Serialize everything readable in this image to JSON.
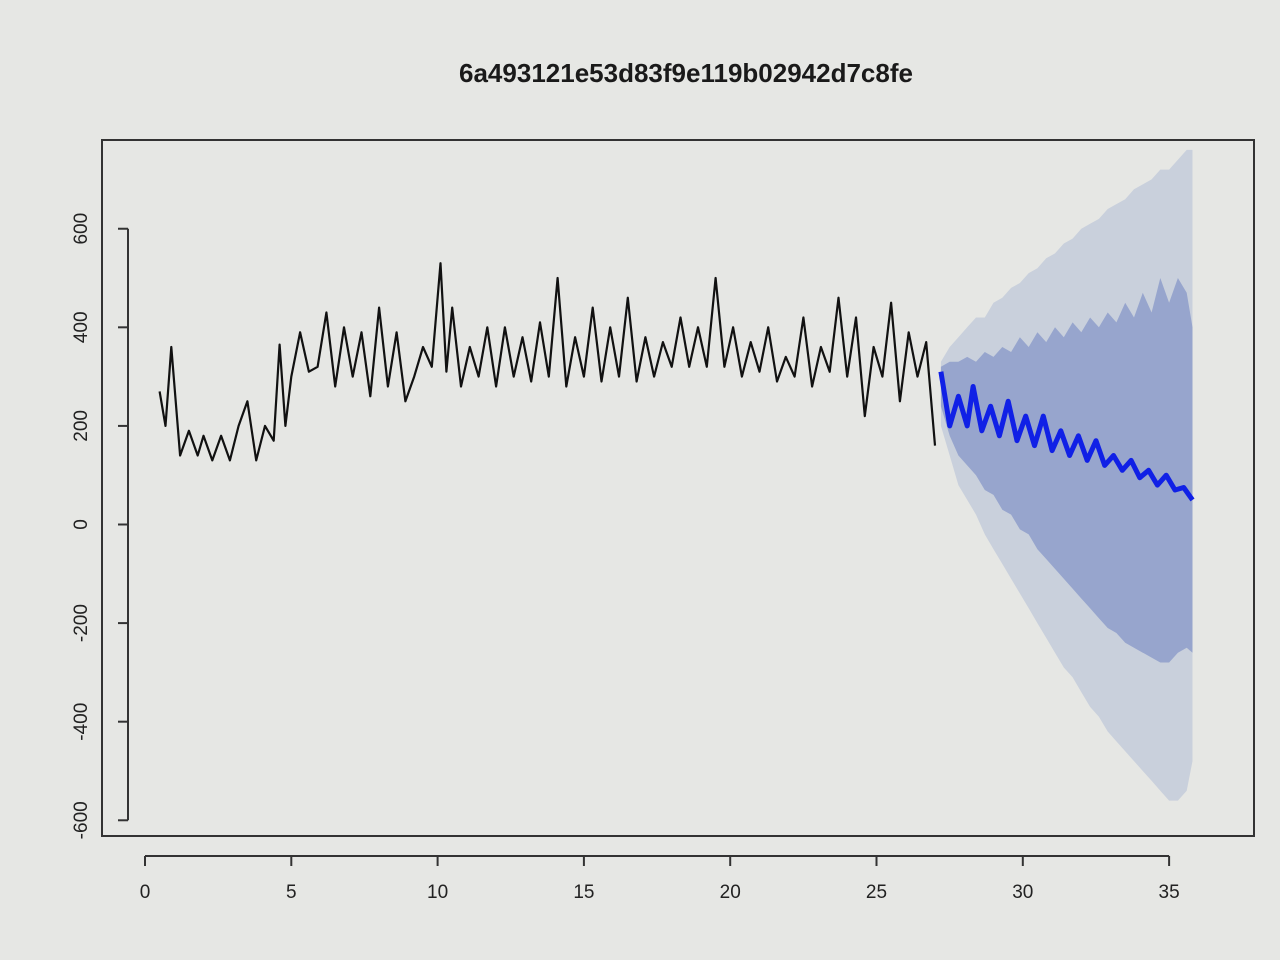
{
  "chart_data": {
    "type": "line",
    "title": "6a493121e53d83f9e119b02942d7c8fe",
    "xlabel": "",
    "ylabel": "",
    "xlim": [
      0,
      36.5
    ],
    "ylim": [
      -640,
      780
    ],
    "x_ticks": [
      "0",
      "5",
      "10",
      "15",
      "20",
      "25",
      "30",
      "35"
    ],
    "x_tick_values": [
      0,
      5,
      10,
      15,
      20,
      25,
      30,
      35
    ],
    "y_ticks": [
      "-600",
      "-400",
      "-200",
      "0",
      "200",
      "400",
      "600"
    ],
    "y_tick_values": [
      -600,
      -400,
      -200,
      0,
      200,
      400,
      600
    ],
    "grid": false,
    "legend": "none",
    "colors": {
      "history": "#111111",
      "forecast": "#1020e6",
      "band80": "#97a5cd",
      "band95": "#c9d0dc",
      "background": "#e6e7e4"
    },
    "series": [
      {
        "role": "history",
        "x": [
          0.5,
          0.7,
          0.9,
          1.2,
          1.5,
          1.8,
          2.0,
          2.3,
          2.6,
          2.9,
          3.2,
          3.5,
          3.8,
          4.1,
          4.4,
          4.6,
          4.8,
          5.0,
          5.3,
          5.6,
          5.9,
          6.2,
          6.5,
          6.8,
          7.1,
          7.4,
          7.7,
          8.0,
          8.3,
          8.6,
          8.9,
          9.2,
          9.5,
          9.8,
          10.1,
          10.3,
          10.5,
          10.8,
          11.1,
          11.4,
          11.7,
          12.0,
          12.3,
          12.6,
          12.9,
          13.2,
          13.5,
          13.8,
          14.1,
          14.4,
          14.7,
          15.0,
          15.3,
          15.6,
          15.9,
          16.2,
          16.5,
          16.8,
          17.1,
          17.4,
          17.7,
          18.0,
          18.3,
          18.6,
          18.9,
          19.2,
          19.5,
          19.8,
          20.1,
          20.4,
          20.7,
          21.0,
          21.3,
          21.6,
          21.9,
          22.2,
          22.5,
          22.8,
          23.1,
          23.4,
          23.7,
          24.0,
          24.3,
          24.6,
          24.9,
          25.2,
          25.5,
          25.8,
          26.1,
          26.4,
          26.7,
          27.0
        ],
        "y": [
          270,
          200,
          360,
          140,
          190,
          140,
          180,
          130,
          180,
          130,
          200,
          250,
          130,
          200,
          170,
          365,
          200,
          300,
          390,
          310,
          320,
          430,
          280,
          400,
          300,
          390,
          260,
          440,
          280,
          390,
          250,
          300,
          360,
          320,
          530,
          310,
          440,
          280,
          360,
          300,
          400,
          280,
          400,
          300,
          380,
          290,
          410,
          300,
          500,
          280,
          380,
          300,
          440,
          290,
          400,
          300,
          460,
          290,
          380,
          300,
          370,
          320,
          420,
          320,
          400,
          320,
          500,
          320,
          400,
          300,
          370,
          310,
          400,
          290,
          340,
          300,
          420,
          280,
          360,
          310,
          460,
          300,
          420,
          220,
          360,
          300,
          450,
          250,
          390,
          300,
          370,
          160
        ],
        "name": ""
      },
      {
        "role": "forecast",
        "x": [
          27.2,
          27.5,
          27.8,
          28.1,
          28.3,
          28.6,
          28.9,
          29.2,
          29.5,
          29.8,
          30.1,
          30.4,
          30.7,
          31.0,
          31.3,
          31.6,
          31.9,
          32.2,
          32.5,
          32.8,
          33.1,
          33.4,
          33.7,
          34.0,
          34.3,
          34.6,
          34.9,
          35.2,
          35.5,
          35.8
        ],
        "y": [
          310,
          200,
          260,
          200,
          280,
          190,
          240,
          180,
          250,
          170,
          220,
          160,
          220,
          150,
          190,
          140,
          180,
          130,
          170,
          120,
          140,
          110,
          130,
          95,
          110,
          80,
          100,
          70,
          75,
          50
        ],
        "name": ""
      }
    ],
    "bands": {
      "x": [
        27.2,
        27.5,
        27.8,
        28.1,
        28.4,
        28.7,
        29.0,
        29.3,
        29.6,
        29.9,
        30.2,
        30.5,
        30.8,
        31.1,
        31.4,
        31.7,
        32.0,
        32.3,
        32.6,
        32.9,
        33.2,
        33.5,
        33.8,
        34.1,
        34.4,
        34.7,
        35.0,
        35.3,
        35.6,
        35.8
      ],
      "hi80": [
        320,
        330,
        330,
        340,
        330,
        350,
        340,
        360,
        350,
        380,
        360,
        390,
        370,
        400,
        380,
        410,
        390,
        420,
        400,
        430,
        410,
        450,
        420,
        470,
        430,
        500,
        450,
        500,
        470,
        400
      ],
      "lo80": [
        240,
        180,
        140,
        120,
        100,
        70,
        60,
        30,
        20,
        -10,
        -20,
        -50,
        -70,
        -90,
        -110,
        -130,
        -150,
        -170,
        -190,
        -210,
        -220,
        -240,
        -250,
        -260,
        -270,
        -280,
        -280,
        -260,
        -250,
        -260
      ],
      "hi95": [
        330,
        360,
        380,
        400,
        420,
        420,
        450,
        460,
        480,
        490,
        510,
        520,
        540,
        550,
        570,
        580,
        600,
        610,
        620,
        640,
        650,
        660,
        680,
        690,
        700,
        720,
        720,
        740,
        760,
        760
      ],
      "lo95": [
        200,
        140,
        80,
        50,
        20,
        -20,
        -50,
        -80,
        -110,
        -140,
        -170,
        -200,
        -230,
        -260,
        -290,
        -310,
        -340,
        -370,
        -390,
        -420,
        -440,
        -460,
        -480,
        -500,
        -520,
        -540,
        -560,
        -560,
        -540,
        -480
      ]
    }
  }
}
